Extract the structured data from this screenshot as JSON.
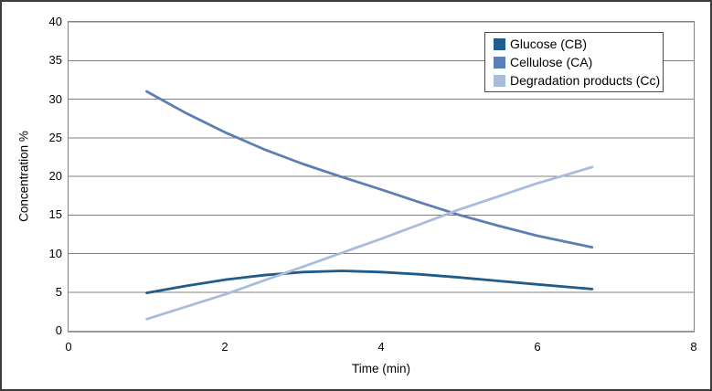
{
  "chart_data": {
    "type": "line",
    "title": "",
    "xlabel": "Time (min)",
    "ylabel": "Concentration %",
    "xlim": [
      0,
      8
    ],
    "ylim": [
      0,
      40
    ],
    "x_ticks": [
      0,
      2,
      4,
      6,
      8
    ],
    "y_ticks": [
      0,
      5,
      10,
      15,
      20,
      25,
      30,
      35,
      40
    ],
    "grid": "horizontal",
    "gridline_color": "#808080",
    "axis_color": "#9a9a9a",
    "legend_position": "top-right",
    "x": [
      1,
      1.5,
      2,
      2.5,
      3,
      3.5,
      4,
      4.5,
      5,
      5.5,
      6,
      6.7
    ],
    "series": [
      {
        "name": "Glucose (CB)",
        "color": "#1F5C8B",
        "values": [
          4.9,
          5.8,
          6.6,
          7.2,
          7.6,
          7.75,
          7.6,
          7.3,
          6.9,
          6.45,
          6.0,
          5.4
        ]
      },
      {
        "name": "Cellulose (CA)",
        "color": "#5B7FB5",
        "values": [
          31.0,
          28.2,
          25.7,
          23.5,
          21.6,
          19.9,
          18.3,
          16.6,
          15.0,
          13.6,
          12.3,
          10.8
        ]
      },
      {
        "name": "Degradation products (Cc)",
        "color": "#A9BDDB",
        "values": [
          1.5,
          3.1,
          4.7,
          6.5,
          8.3,
          10.1,
          11.9,
          13.8,
          15.7,
          17.4,
          19.1,
          21.2
        ]
      }
    ]
  }
}
